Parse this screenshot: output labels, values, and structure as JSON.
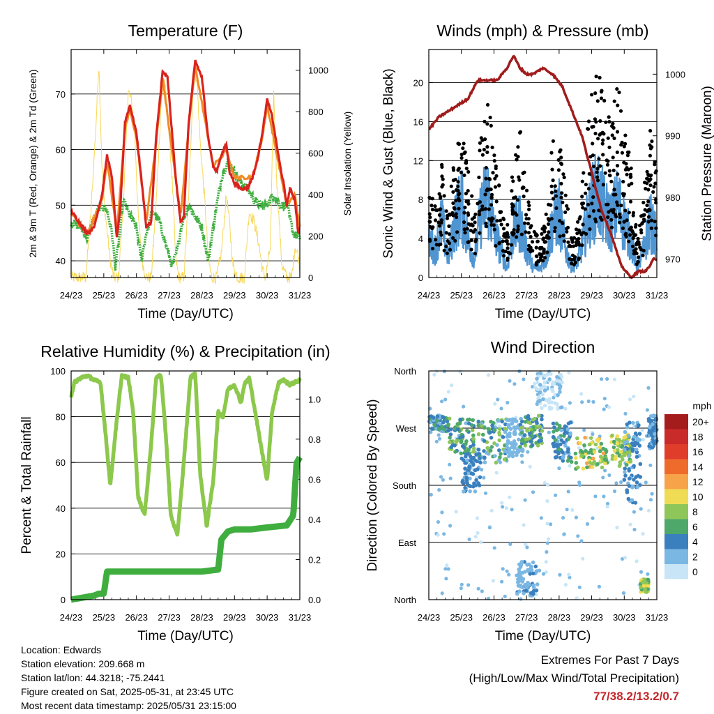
{
  "chart_data": [
    {
      "type": "line",
      "title": "Temperature (F)",
      "xlabel": "Time (Day/UTC)",
      "ylabel": "2m & 9m T (Red, Orange) & 2m Td (Green)",
      "y2label": "Solar Insolation (Yellow)",
      "x_ticks": [
        "24/23",
        "25/23",
        "26/23",
        "27/23",
        "28/23",
        "29/23",
        "30/23",
        "31/23"
      ],
      "ylim": [
        37,
        78
      ],
      "y_ticks": [
        40,
        50,
        60,
        70
      ],
      "y2lim": [
        0,
        1100
      ],
      "y2_ticks": [
        0,
        200,
        400,
        600,
        800,
        1000
      ],
      "grid": true,
      "colors": {
        "t2m": "#d9231e",
        "t9m": "#f08a24",
        "td": "#3fae3f",
        "solar": "#f7d85a"
      },
      "series": [
        {
          "name": "2m T",
          "x": [
            0,
            0.3,
            0.5,
            0.7,
            0.95,
            1.1,
            1.25,
            1.4,
            1.5,
            1.65,
            1.8,
            2,
            2.2,
            2.3,
            2.45,
            2.6,
            2.8,
            2.95,
            3.2,
            3.35,
            3.45,
            3.6,
            3.8,
            4,
            4.2,
            4.35,
            4.45,
            4.6,
            4.75,
            4.85,
            5,
            5.2,
            5.4,
            5.55,
            5.7,
            5.85,
            6,
            6.15,
            6.4,
            6.5,
            6.6,
            6.7,
            6.85,
            6.95,
            7
          ],
          "values": [
            49,
            46.5,
            45,
            46,
            52,
            59,
            55,
            44,
            49,
            65,
            68,
            63,
            52,
            46,
            47,
            62,
            74,
            73,
            55,
            47,
            48,
            65,
            76,
            73,
            62,
            57,
            56,
            59,
            61,
            56,
            54,
            53,
            53,
            55,
            58,
            63,
            69,
            66,
            57,
            54,
            50,
            53,
            51,
            45,
            46
          ]
        },
        {
          "name": "9m T",
          "x": [
            0,
            0.5,
            0.95,
            1.1,
            1.4,
            1.65,
            1.8,
            2,
            2.3,
            2.6,
            2.8,
            3.35,
            3.6,
            3.8,
            4.35,
            4.75,
            5,
            5.55,
            5.85,
            6,
            6.4,
            6.6,
            6.85,
            7
          ],
          "values": [
            48.5,
            45,
            51,
            58,
            45,
            64,
            67,
            62,
            47,
            61,
            73,
            48,
            64,
            75,
            57,
            60,
            55,
            55,
            62,
            68,
            56,
            50,
            52,
            46
          ]
        },
        {
          "name": "2m Td",
          "x": [
            0,
            0.3,
            0.5,
            0.65,
            0.9,
            1.1,
            1.25,
            1.35,
            1.45,
            1.6,
            1.8,
            2,
            2.15,
            2.3,
            2.5,
            2.7,
            2.9,
            3.1,
            3.25,
            3.4,
            3.6,
            3.8,
            4,
            4.2,
            4.4,
            4.6,
            4.8,
            5,
            5.2,
            5.4,
            5.6,
            5.8,
            6,
            6.2,
            6.4,
            6.6,
            6.8,
            7
          ],
          "values": [
            47,
            46,
            44,
            47,
            50,
            49,
            45,
            39,
            43,
            51,
            48,
            46,
            40,
            45,
            49,
            47,
            43,
            39,
            42,
            47,
            50,
            48,
            46,
            40,
            48,
            55,
            58,
            56,
            54,
            53,
            51,
            50,
            50,
            52,
            50,
            50,
            45,
            44
          ]
        },
        {
          "name": "Solar Insolation",
          "axis": "y2",
          "x": [
            0,
            0.45,
            0.6,
            0.75,
            0.85,
            0.95,
            1.05,
            1.2,
            1.3,
            1.45,
            1.6,
            1.75,
            1.85,
            1.95,
            2.05,
            2.2,
            2.3,
            2.45,
            2.6,
            2.75,
            2.85,
            2.95,
            3.1,
            3.2,
            3.3,
            3.45,
            3.6,
            3.75,
            3.85,
            3.95,
            4.1,
            4.2,
            4.3,
            4.45,
            4.6,
            4.75,
            4.85,
            4.95,
            5.1,
            5.2,
            5.3,
            5.45,
            5.6,
            5.75,
            5.85,
            5.95,
            6.1,
            6.2,
            6.3,
            6.45,
            6.6,
            6.75,
            6.85,
            6.95,
            7
          ],
          "values": [
            0,
            0,
            300,
            700,
            1040,
            500,
            300,
            80,
            0,
            0,
            350,
            900,
            850,
            700,
            300,
            60,
            0,
            0,
            350,
            830,
            960,
            800,
            450,
            90,
            0,
            0,
            400,
            1000,
            960,
            650,
            350,
            90,
            0,
            0,
            120,
            400,
            260,
            60,
            0,
            0,
            0,
            320,
            270,
            160,
            40,
            0,
            150,
            900,
            450,
            60,
            0,
            0,
            150,
            110,
            40
          ]
        }
      ]
    },
    {
      "type": "line",
      "title": "Winds (mph) & Pressure (mb)",
      "xlabel": "Time (Day/UTC)",
      "ylabel": "Sonic Wind & Gust (Blue, Black)",
      "y2label": "Station Pressure (Maroon)",
      "x_ticks": [
        "24/23",
        "25/23",
        "26/23",
        "27/23",
        "28/23",
        "29/23",
        "30/23",
        "31/23"
      ],
      "ylim": [
        0,
        23.4
      ],
      "y_ticks": [
        0,
        4,
        8,
        12,
        16,
        20
      ],
      "y2lim": [
        967,
        1004
      ],
      "y2_ticks": [
        970,
        980,
        990,
        1000
      ],
      "grid": true,
      "colors": {
        "wind": "#4f95d2",
        "gust": "#000000",
        "pressure": "#a01c1c"
      },
      "series": [
        {
          "name": "Sonic Wind",
          "x": [
            0,
            0.2,
            0.4,
            0.6,
            0.8,
            1,
            1.2,
            1.4,
            1.6,
            1.8,
            2,
            2.2,
            2.4,
            2.6,
            2.8,
            3,
            3.2,
            3.4,
            3.6,
            3.8,
            4,
            4.2,
            4.4,
            4.6,
            4.8,
            5,
            5.2,
            5.4,
            5.6,
            5.8,
            6,
            6.2,
            6.4,
            6.6,
            6.8,
            7
          ],
          "values": [
            4,
            3,
            6,
            2,
            6,
            8,
            4,
            2,
            7,
            9,
            5,
            3,
            1,
            5,
            6,
            3,
            1,
            1,
            2,
            6,
            7,
            3,
            1,
            2,
            5,
            8,
            9,
            7,
            6,
            8,
            6,
            4,
            1,
            3,
            6,
            4
          ]
        },
        {
          "name": "Gust",
          "x": [
            0,
            0.2,
            0.4,
            0.6,
            0.8,
            1,
            1.2,
            1.4,
            1.6,
            1.8,
            2,
            2.2,
            2.4,
            2.6,
            2.8,
            3,
            3.2,
            3.4,
            3.6,
            3.8,
            4,
            4.2,
            4.4,
            4.6,
            4.8,
            5,
            5.2,
            5.4,
            5.6,
            5.8,
            6,
            6.2,
            6.4,
            6.6,
            6.8,
            7
          ],
          "values": [
            7,
            6,
            9,
            5,
            10,
            12,
            9,
            5,
            13,
            15,
            10,
            7,
            4,
            9,
            12,
            7,
            4,
            3,
            5,
            11,
            12,
            7,
            3,
            5,
            10,
            15,
            17,
            14,
            12,
            16,
            12,
            9,
            3,
            7,
            12,
            9
          ]
        },
        {
          "name": "Station Pressure",
          "axis": "y2",
          "x": [
            0,
            0.3,
            0.6,
            0.9,
            1.2,
            1.5,
            1.8,
            2.1,
            2.4,
            2.6,
            2.8,
            3,
            3.2,
            3.5,
            3.8,
            4.1,
            4.4,
            4.7,
            5,
            5.3,
            5.6,
            5.9,
            6.2,
            6.45,
            6.65,
            6.8,
            6.9,
            7
          ],
          "values": [
            991,
            993,
            994,
            995,
            996,
            999,
            999,
            999,
            1001,
            1003,
            1001,
            1000,
            1000,
            1001,
            1000,
            998,
            994,
            990,
            984,
            978,
            974,
            969,
            967,
            968,
            968,
            969,
            970,
            970
          ]
        }
      ]
    },
    {
      "type": "line",
      "title": "Relative Humidity (%) & Precipitation (in)",
      "xlabel": "Time (Day/UTC)",
      "ylabel": "Percent & Total Rainfall",
      "x_ticks": [
        "24/23",
        "25/23",
        "26/23",
        "27/23",
        "28/23",
        "29/23",
        "30/23",
        "31/23"
      ],
      "ylim": [
        0,
        100
      ],
      "y_ticks": [
        0,
        20,
        40,
        60,
        80,
        100
      ],
      "y2lim": [
        0,
        1.14
      ],
      "y2_ticks": [
        0.0,
        0.2,
        0.4,
        0.6,
        0.8,
        1.0
      ],
      "grid": true,
      "colors": {
        "rh": "#8cc84b",
        "precip": "#3fae3f"
      },
      "series": [
        {
          "name": "Relative Humidity",
          "x": [
            0,
            0.1,
            0.3,
            0.5,
            0.7,
            0.9,
            1.05,
            1.2,
            1.35,
            1.55,
            1.75,
            1.9,
            2.05,
            2.25,
            2.45,
            2.6,
            2.75,
            2.9,
            3.05,
            3.25,
            3.45,
            3.65,
            3.8,
            3.95,
            4.15,
            4.35,
            4.5,
            4.65,
            4.8,
            5,
            5.2,
            5.3,
            5.45,
            5.6,
            5.8,
            6,
            6.15,
            6.35,
            6.5,
            6.7,
            6.85,
            7
          ],
          "values": [
            89,
            95,
            97,
            98,
            96,
            95,
            73,
            50,
            72,
            98,
            97,
            82,
            45,
            37,
            68,
            97,
            98,
            72,
            37,
            28,
            60,
            97,
            99,
            55,
            32,
            52,
            82,
            80,
            92,
            94,
            86,
            94,
            97,
            85,
            68,
            52,
            82,
            95,
            96,
            94,
            95,
            96
          ]
        },
        {
          "name": "Total Precipitation",
          "axis": "y2",
          "x": [
            0,
            0.7,
            0.85,
            1,
            1.1,
            1.5,
            2,
            3,
            4,
            4.5,
            4.6,
            4.8,
            5,
            5.5,
            6,
            6.6,
            6.8,
            6.9,
            7
          ],
          "values": [
            0,
            0.02,
            0.03,
            0.03,
            0.14,
            0.14,
            0.14,
            0.14,
            0.14,
            0.15,
            0.3,
            0.34,
            0.35,
            0.35,
            0.36,
            0.37,
            0.42,
            0.68,
            0.71
          ]
        }
      ]
    },
    {
      "type": "scatter",
      "title": "Wind Direction",
      "xlabel": "Time (Day/UTC)",
      "ylabel": "Direction (Colored By Speed)",
      "x_ticks": [
        "24/23",
        "25/23",
        "26/23",
        "27/23",
        "28/23",
        "29/23",
        "30/23",
        "31/23"
      ],
      "y_ticks": [
        "North",
        "East",
        "South",
        "West",
        "North"
      ],
      "ylim": [
        0,
        360
      ],
      "grid": true,
      "legend": {
        "title": "mph",
        "placement": "right",
        "labels": [
          "20+",
          "18",
          "16",
          "14",
          "12",
          "10",
          "8",
          "6",
          "4",
          "2",
          "0"
        ],
        "colors": [
          "#a51c1c",
          "#c92a2a",
          "#e03d2a",
          "#ef6b2c",
          "#f7a34a",
          "#f0dc54",
          "#8fc659",
          "#4ea86a",
          "#3b80be",
          "#7bb7e3",
          "#c7e5f6"
        ]
      },
      "clusters": [
        {
          "x": [
            0,
            0.6
          ],
          "dir": [
            265,
            290
          ],
          "speed": [
            2,
            6
          ]
        },
        {
          "x": [
            0.6,
            1.4
          ],
          "dir": [
            230,
            285
          ],
          "speed": [
            4,
            9
          ]
        },
        {
          "x": [
            1.0,
            1.6
          ],
          "dir": [
            170,
            230
          ],
          "speed": [
            2,
            5
          ]
        },
        {
          "x": [
            1.5,
            2.4
          ],
          "dir": [
            215,
            285
          ],
          "speed": [
            2,
            9
          ]
        },
        {
          "x": [
            2.4,
            2.9
          ],
          "dir": [
            225,
            285
          ],
          "speed": [
            1,
            3
          ]
        },
        {
          "x": [
            2.8,
            3.5
          ],
          "dir": [
            240,
            290
          ],
          "speed": [
            3,
            9
          ]
        },
        {
          "x": [
            2.7,
            3.4
          ],
          "dir": [
            5,
            60
          ],
          "speed": [
            1,
            4
          ]
        },
        {
          "x": [
            3.3,
            4.1
          ],
          "dir": [
            300,
            360
          ],
          "speed": [
            0,
            2
          ]
        },
        {
          "x": [
            3.8,
            4.4
          ],
          "dir": [
            215,
            280
          ],
          "speed": [
            2,
            6
          ]
        },
        {
          "x": [
            4.5,
            5.5
          ],
          "dir": [
            205,
            255
          ],
          "speed": [
            5,
            12
          ]
        },
        {
          "x": [
            5.6,
            6.2
          ],
          "dir": [
            210,
            260
          ],
          "speed": [
            5,
            11
          ]
        },
        {
          "x": [
            6.0,
            6.5
          ],
          "dir": [
            150,
            280
          ],
          "speed": [
            2,
            5
          ]
        },
        {
          "x": [
            6.5,
            6.75
          ],
          "dir": [
            12,
            32
          ],
          "speed": [
            6,
            10
          ]
        },
        {
          "x": [
            6.75,
            7.0
          ],
          "dir": [
            235,
            290
          ],
          "speed": [
            2,
            5
          ]
        }
      ]
    }
  ],
  "info": {
    "location": "Location: Edwards",
    "elevation": "Station elevation: 209.668 m",
    "latlon": "Station lat/lon: 44.3218; -75.2441",
    "created": "Figure created on Sat, 2025-05-31, at 23:45 UTC",
    "recent": "Most recent data timestamp: 2025/05/31 23:15:00"
  },
  "extremes": {
    "line1": "Extremes For Past 7 Days",
    "line2": "(High/Low/Max Wind/Total Precipitation)",
    "values": "77/38.2/13.2/0.7"
  }
}
